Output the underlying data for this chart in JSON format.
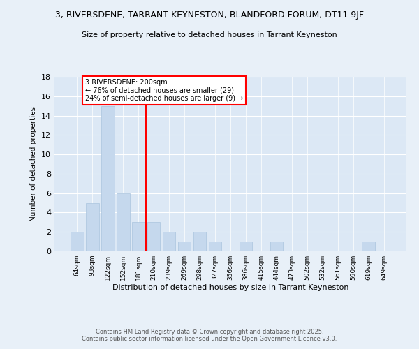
{
  "title1": "3, RIVERSDENE, TARRANT KEYNESTON, BLANDFORD FORUM, DT11 9JF",
  "title2": "Size of property relative to detached houses in Tarrant Keyneston",
  "xlabel": "Distribution of detached houses by size in Tarrant Keyneston",
  "ylabel": "Number of detached properties",
  "bin_labels": [
    "64sqm",
    "93sqm",
    "122sqm",
    "152sqm",
    "181sqm",
    "210sqm",
    "239sqm",
    "269sqm",
    "298sqm",
    "327sqm",
    "356sqm",
    "386sqm",
    "415sqm",
    "444sqm",
    "473sqm",
    "502sqm",
    "532sqm",
    "561sqm",
    "590sqm",
    "619sqm",
    "649sqm"
  ],
  "bar_values": [
    2,
    5,
    15,
    6,
    3,
    3,
    2,
    1,
    2,
    1,
    0,
    1,
    0,
    1,
    0,
    0,
    0,
    0,
    0,
    1,
    0
  ],
  "bar_color": "#c5d8ed",
  "bar_edge_color": "#aac4de",
  "property_line_x": 4.5,
  "annotation_text": "3 RIVERSDENE: 200sqm\n← 76% of detached houses are smaller (29)\n24% of semi-detached houses are larger (9) →",
  "annotation_box_color": "white",
  "annotation_box_edge_color": "red",
  "vline_color": "red",
  "ylim": [
    0,
    18
  ],
  "yticks": [
    0,
    2,
    4,
    6,
    8,
    10,
    12,
    14,
    16,
    18
  ],
  "footer_line1": "Contains HM Land Registry data © Crown copyright and database right 2025.",
  "footer_line2": "Contains public sector information licensed under the Open Government Licence v3.0.",
  "background_color": "#e8f0f8",
  "plot_bg_color": "#dce8f5"
}
